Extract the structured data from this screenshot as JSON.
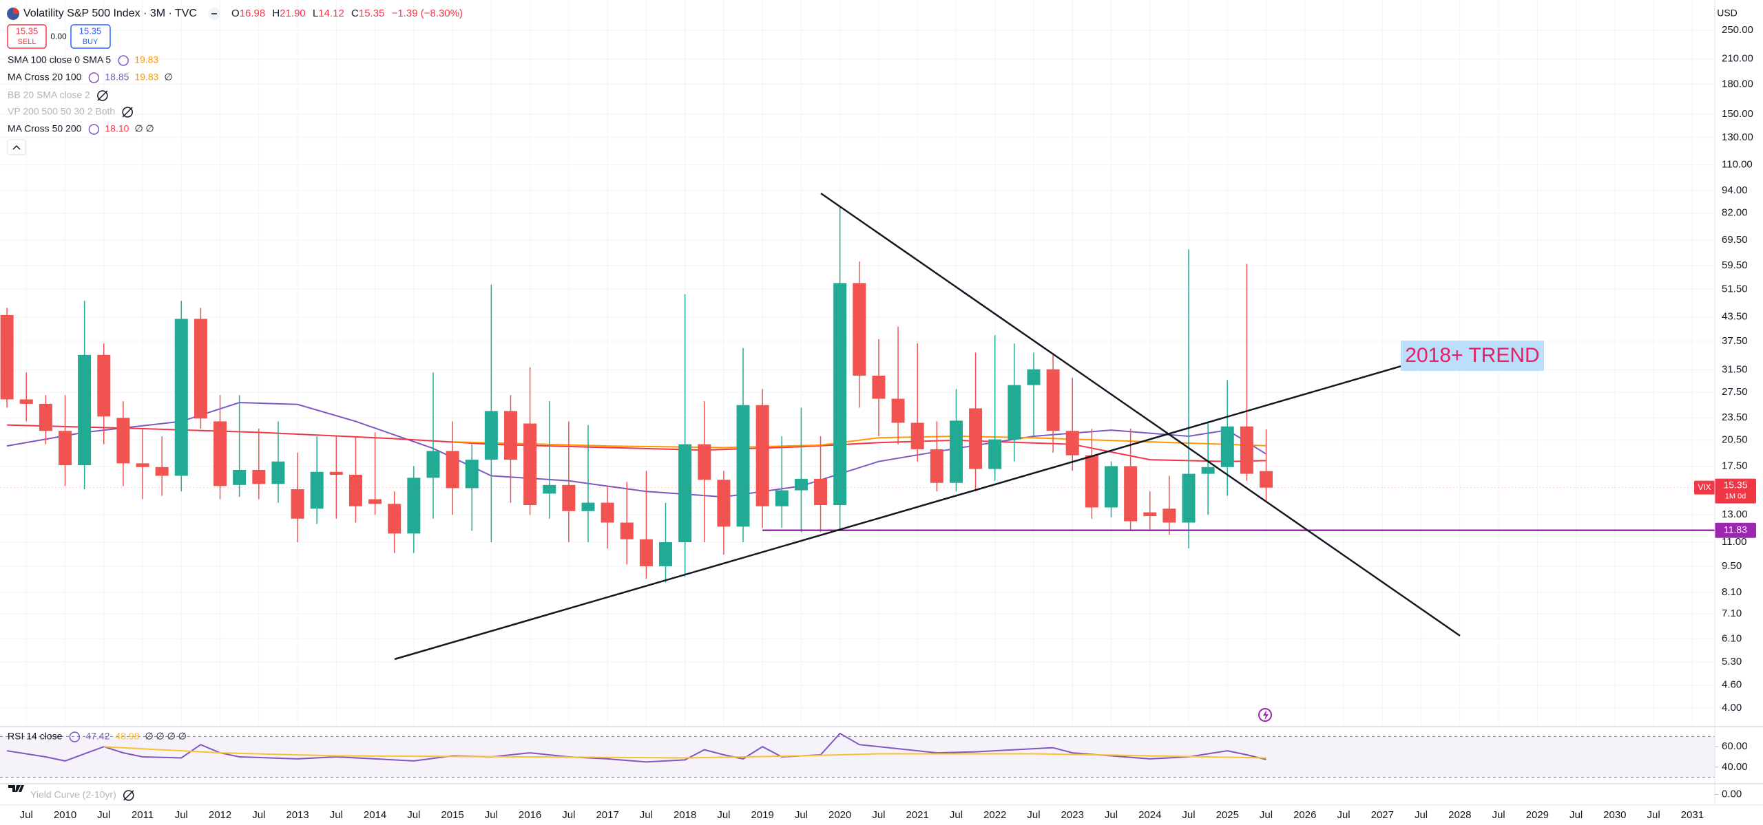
{
  "header": {
    "title": "Volatility S&P 500 Index · 3M · TVC",
    "ohlc": [
      {
        "label": "O",
        "value": "16.98"
      },
      {
        "label": "H",
        "value": "21.90"
      },
      {
        "label": "L",
        "value": "14.12"
      },
      {
        "label": "C",
        "value": "15.35"
      }
    ],
    "change": "−1.39 (−8.30%)",
    "currency": "USD",
    "sell_price": "15.35",
    "sell": "SELL",
    "spread": "0.00",
    "buy_price": "15.35",
    "buy": "BUY"
  },
  "legend": [
    {
      "name": "SMA 100 close 0 SMA 5",
      "values": [
        {
          "text": "19.83",
          "color": "#ff9800"
        }
      ]
    },
    {
      "name": "MA Cross 20 100",
      "values": [
        {
          "text": "18.85",
          "color": "#7e57c2"
        },
        {
          "text": "19.83",
          "color": "#ff9800"
        },
        {
          "text": "∅",
          "color": "#131722"
        }
      ]
    },
    {
      "name": "BB 20 SMA close 2",
      "hidden": true
    },
    {
      "name": "VP 200 500 50 30 2 Both",
      "hidden": true
    },
    {
      "name": "MA Cross 50 200",
      "values": [
        {
          "text": "18.10",
          "color": "#f23645"
        },
        {
          "text": "∅ ∅",
          "color": "#131722"
        }
      ]
    }
  ],
  "pane_legends": [
    {
      "name": "RSI 14 close",
      "values": [
        {
          "text": "47.42",
          "color": "#7e57c2"
        },
        {
          "text": "48.98",
          "color": "#fbc02d"
        },
        {
          "text": "∅ ∅ ∅ ∅",
          "color": "#131722"
        }
      ]
    },
    {
      "name": "Yield Curve (2-10yr)",
      "hidden": true
    }
  ],
  "chart_data": [
    {
      "type": "candlestick",
      "log_scale": true,
      "grid": true,
      "up_color": "#22ab94",
      "down_color": "#f05350",
      "annotation": "2018+ TREND",
      "x": [
        2009.25,
        2009.5,
        2009.75,
        2010,
        2010.25,
        2010.5,
        2010.75,
        2011,
        2011.25,
        2011.5,
        2011.75,
        2012,
        2012.25,
        2012.5,
        2012.75,
        2013,
        2013.25,
        2013.5,
        2013.75,
        2014,
        2014.25,
        2014.5,
        2014.75,
        2015,
        2015.25,
        2015.5,
        2015.75,
        2016,
        2016.25,
        2016.5,
        2016.75,
        2017,
        2017.25,
        2017.5,
        2017.75,
        2018,
        2018.25,
        2018.5,
        2018.75,
        2019,
        2019.25,
        2019.5,
        2019.75,
        2020,
        2020.25,
        2020.5,
        2020.75,
        2021,
        2021.25,
        2021.5,
        2021.75,
        2022,
        2022.25,
        2022.5,
        2022.75,
        2023,
        2023.25,
        2023.5,
        2023.75,
        2024,
        2024.25,
        2024.5,
        2024.75,
        2025,
        2025.25,
        2025.5
      ],
      "open": [
        44,
        26.3,
        25.6,
        21.7,
        17.6,
        34.5,
        23.5,
        17.8,
        17.4,
        16.5,
        43,
        23,
        15.6,
        17.1,
        15.7,
        15.2,
        13.5,
        16.9,
        16.6,
        14.3,
        13.9,
        11.6,
        16.3,
        19.2,
        15.3,
        18.2,
        24.5,
        22.7,
        14.8,
        15.6,
        13.3,
        14,
        12.4,
        11.2,
        9.5,
        11,
        20,
        16.1,
        12.1,
        25.4,
        13.7,
        15.1,
        16.2,
        13.8,
        53.5,
        30.4,
        26.4,
        22.8,
        19.4,
        15.8,
        24.9,
        17.2,
        20.6,
        28.7,
        31.6,
        21.7,
        18.7,
        13.6,
        17.5,
        13.2,
        13.5,
        12.4,
        16.7,
        17.4,
        22.3,
        16.98
      ],
      "high": [
        46,
        31,
        27,
        27,
        48,
        37,
        26,
        22,
        21,
        48,
        46,
        27,
        27,
        22,
        23,
        19,
        21,
        21,
        21,
        21.5,
        15,
        17.5,
        31,
        23,
        20,
        53,
        27,
        32,
        26,
        23,
        22.5,
        15.5,
        15.9,
        17,
        14,
        50,
        26,
        17,
        36,
        28,
        21,
        25,
        21,
        85.5,
        61,
        38,
        41,
        37,
        23,
        28,
        35,
        38.9,
        37,
        35,
        34.9,
        30,
        22,
        18,
        22,
        15,
        16.5,
        65.7,
        23,
        29.6,
        60.1,
        21.9
      ],
      "low": [
        25,
        23,
        20,
        15.5,
        15.2,
        20,
        15.5,
        14.3,
        14.6,
        15,
        22,
        14.3,
        14.5,
        14.3,
        14,
        11,
        12.3,
        12.7,
        12.4,
        13,
        10.3,
        10.3,
        12.7,
        13,
        11.8,
        11,
        14,
        13,
        12.7,
        11,
        11,
        10.6,
        9.6,
        8.8,
        8.6,
        8.9,
        11,
        10.2,
        11,
        12,
        12,
        11.7,
        11.7,
        11.8,
        25,
        21,
        20,
        18,
        15,
        15,
        15,
        16,
        18,
        21,
        19,
        17,
        12.7,
        12.8,
        11.8,
        11.9,
        11.5,
        10.6,
        13,
        14.6,
        16,
        14.12
      ],
      "close": [
        26.3,
        25.6,
        21.7,
        17.6,
        34.5,
        23.7,
        17.8,
        17.4,
        16.5,
        43,
        23.4,
        15.5,
        17.1,
        15.7,
        18,
        12.7,
        16.9,
        16.6,
        13.7,
        13.9,
        11.6,
        16.3,
        19.2,
        15.3,
        18.2,
        24.5,
        18.2,
        13.8,
        15.6,
        13.3,
        14,
        12.4,
        11.2,
        9.5,
        11,
        20,
        16.1,
        12.1,
        25.4,
        13.7,
        15.1,
        16.2,
        13.8,
        53.5,
        30.4,
        26.4,
        22.8,
        19.4,
        15.8,
        23.1,
        17.2,
        20.6,
        28.7,
        31.6,
        21.7,
        18.7,
        13.6,
        17.5,
        12.5,
        12.9,
        12.4,
        16.7,
        17.4,
        22.3,
        16.7,
        15.35
      ],
      "lines": [
        {
          "color": "#7e57c2",
          "x": [
            2009.25,
            2010.25,
            2011.5,
            2012.25,
            2013,
            2013.75,
            2014.75,
            2015.5,
            2016.5,
            2017.5,
            2018.5,
            2019.5,
            2020.5,
            2021.5,
            2022.5,
            2023.5,
            2024.5,
            2025,
            2025.5
          ],
          "values": [
            19.8,
            21.5,
            23,
            25.8,
            25.5,
            23,
            19.5,
            16.5,
            16,
            15,
            14.5,
            15.5,
            18,
            19.5,
            21,
            21.8,
            21,
            21.8,
            18.85
          ]
        },
        {
          "color": "#f23645",
          "x": [
            2009.25,
            2011,
            2012.5,
            2014.25,
            2015.5,
            2017,
            2018.25,
            2019.5,
            2020.5,
            2021.5,
            2023,
            2024,
            2025,
            2025.5
          ],
          "values": [
            22.5,
            22,
            21.5,
            20.7,
            20,
            19.6,
            19.3,
            19.7,
            20.2,
            20.5,
            20,
            18.2,
            18,
            18.1
          ]
        },
        {
          "color": "#ff9800",
          "x": [
            2015,
            2017,
            2018.5,
            2019.75,
            2020.5,
            2021.5,
            2022.5,
            2024,
            2025.5
          ],
          "values": [
            20.3,
            19.8,
            19.6,
            19.9,
            20.8,
            21,
            20.8,
            20.3,
            19.83
          ]
        }
      ],
      "hline": {
        "value": 11.83,
        "from": 2019,
        "color": "#9c27b0"
      },
      "last": {
        "value": 15.35,
        "symbol": "VIX",
        "countdown": "1M 0d",
        "color": "#f23645"
      },
      "xlim": [
        2009.16,
        2031.29
      ],
      "xticks": [
        {
          "value": 2009.5,
          "label": "Jul"
        },
        2010,
        {
          "value": 2010.5,
          "label": "Jul"
        },
        2011,
        {
          "value": 2011.5,
          "label": "Jul"
        },
        2012,
        {
          "value": 2012.5,
          "label": "Jul"
        },
        2013,
        {
          "value": 2013.5,
          "label": "Jul"
        },
        2014,
        {
          "value": 2014.5,
          "label": "Jul"
        },
        2015,
        {
          "value": 2015.5,
          "label": "Jul"
        },
        2016,
        {
          "value": 2016.5,
          "label": "Jul"
        },
        2017,
        {
          "value": 2017.5,
          "label": "Jul"
        },
        2018,
        {
          "value": 2018.5,
          "label": "Jul"
        },
        2019,
        {
          "value": 2019.5,
          "label": "Jul"
        },
        2020,
        {
          "value": 2020.5,
          "label": "Jul"
        },
        2021,
        {
          "value": 2021.5,
          "label": "Jul"
        },
        2022,
        {
          "value": 2022.5,
          "label": "Jul"
        },
        2023,
        {
          "value": 2023.5,
          "label": "Jul"
        },
        2024,
        {
          "value": 2024.5,
          "label": "Jul"
        },
        2025,
        {
          "value": 2025.5,
          "label": "Jul"
        },
        2026,
        {
          "value": 2026.5,
          "label": "Jul"
        },
        2027,
        {
          "value": 2027.5,
          "label": "Jul"
        },
        2028,
        {
          "value": 2028.5,
          "label": "Jul"
        },
        2029,
        {
          "value": 2029.5,
          "label": "Jul"
        },
        2030,
        {
          "value": 2030.5,
          "label": "Jul"
        },
        2031
      ],
      "ylim": [
        3.6,
        301
      ],
      "yticks": [
        {
          "value": 250,
          "label": "250.00"
        },
        {
          "value": 210,
          "label": "210.00"
        },
        {
          "value": 180,
          "label": "180.00"
        },
        {
          "value": 150,
          "label": "150.00"
        },
        {
          "value": 130,
          "label": "130.00"
        },
        {
          "value": 110,
          "label": "110.00"
        },
        {
          "value": 94,
          "label": "94.00"
        },
        {
          "value": 82,
          "label": "82.00"
        },
        {
          "value": 69.5,
          "label": "69.50"
        },
        {
          "value": 59.5,
          "label": "59.50"
        },
        {
          "value": 51.5,
          "label": "51.50"
        },
        {
          "value": 43.5,
          "label": "43.50"
        },
        {
          "value": 37.5,
          "label": "37.50"
        },
        {
          "value": 31.5,
          "label": "31.50"
        },
        {
          "value": 27.5,
          "label": "27.50"
        },
        {
          "value": 23.5,
          "label": "23.50"
        },
        {
          "value": 20.5,
          "label": "20.50"
        },
        {
          "value": 17.5,
          "label": "17.50"
        },
        {
          "value": 13,
          "label": "13.00"
        },
        {
          "value": 11,
          "label": "11.00"
        },
        {
          "value": 9.5,
          "label": "9.50"
        },
        {
          "value": 8.1,
          "label": "8.10"
        },
        {
          "value": 7.1,
          "label": "7.10"
        },
        {
          "value": 6.1,
          "label": "6.10"
        },
        {
          "value": 5.3,
          "label": "5.30"
        },
        {
          "value": 4.6,
          "label": "4.60"
        },
        {
          "value": 4,
          "label": "4.00"
        }
      ]
    },
    {
      "type": "line",
      "band": [
        30,
        70
      ],
      "band_color": "#7e57c2",
      "ylim": [
        25,
        77
      ],
      "yticks": [
        {
          "value": 60,
          "label": "60.00"
        },
        {
          "value": 40,
          "label": "40.00"
        }
      ],
      "lines": [
        {
          "color": "#7e57c2",
          "x": [
            2009.25,
            2009.75,
            2010,
            2010.5,
            2010.75,
            2011,
            2011.5,
            2011.75,
            2012,
            2012.25,
            2013,
            2013.5,
            2014,
            2014.5,
            2015,
            2015.5,
            2016,
            2016.5,
            2017,
            2017.5,
            2018,
            2018.25,
            2018.5,
            2018.75,
            2019,
            2019.25,
            2019.75,
            2020,
            2020.25,
            2020.75,
            2021.25,
            2021.75,
            2022.25,
            2022.75,
            2023,
            2023.5,
            2024,
            2024.5,
            2024.75,
            2025,
            2025.25,
            2025.5
          ],
          "values": [
            56,
            50,
            46,
            60,
            54,
            50,
            49,
            62,
            54,
            50,
            48,
            50,
            48,
            46,
            51,
            50,
            54,
            50,
            48,
            45,
            47,
            57,
            52,
            48,
            60,
            50,
            52,
            73,
            62,
            58,
            54,
            55,
            57,
            59,
            54,
            51,
            48,
            50,
            53,
            56,
            52,
            47.42
          ]
        },
        {
          "color": "#fbc02d",
          "x": [
            2010.5,
            2012,
            2013.5,
            2016,
            2018,
            2019.5,
            2020.5,
            2022.5,
            2024,
            2025.5
          ],
          "values": [
            60,
            54,
            51,
            50,
            49,
            51,
            53,
            53,
            51,
            48.98
          ]
        }
      ]
    },
    {
      "type": "line",
      "ylim": [
        -1,
        1
      ],
      "yticks": [
        {
          "value": 0,
          "label": "0.00"
        }
      ]
    }
  ]
}
